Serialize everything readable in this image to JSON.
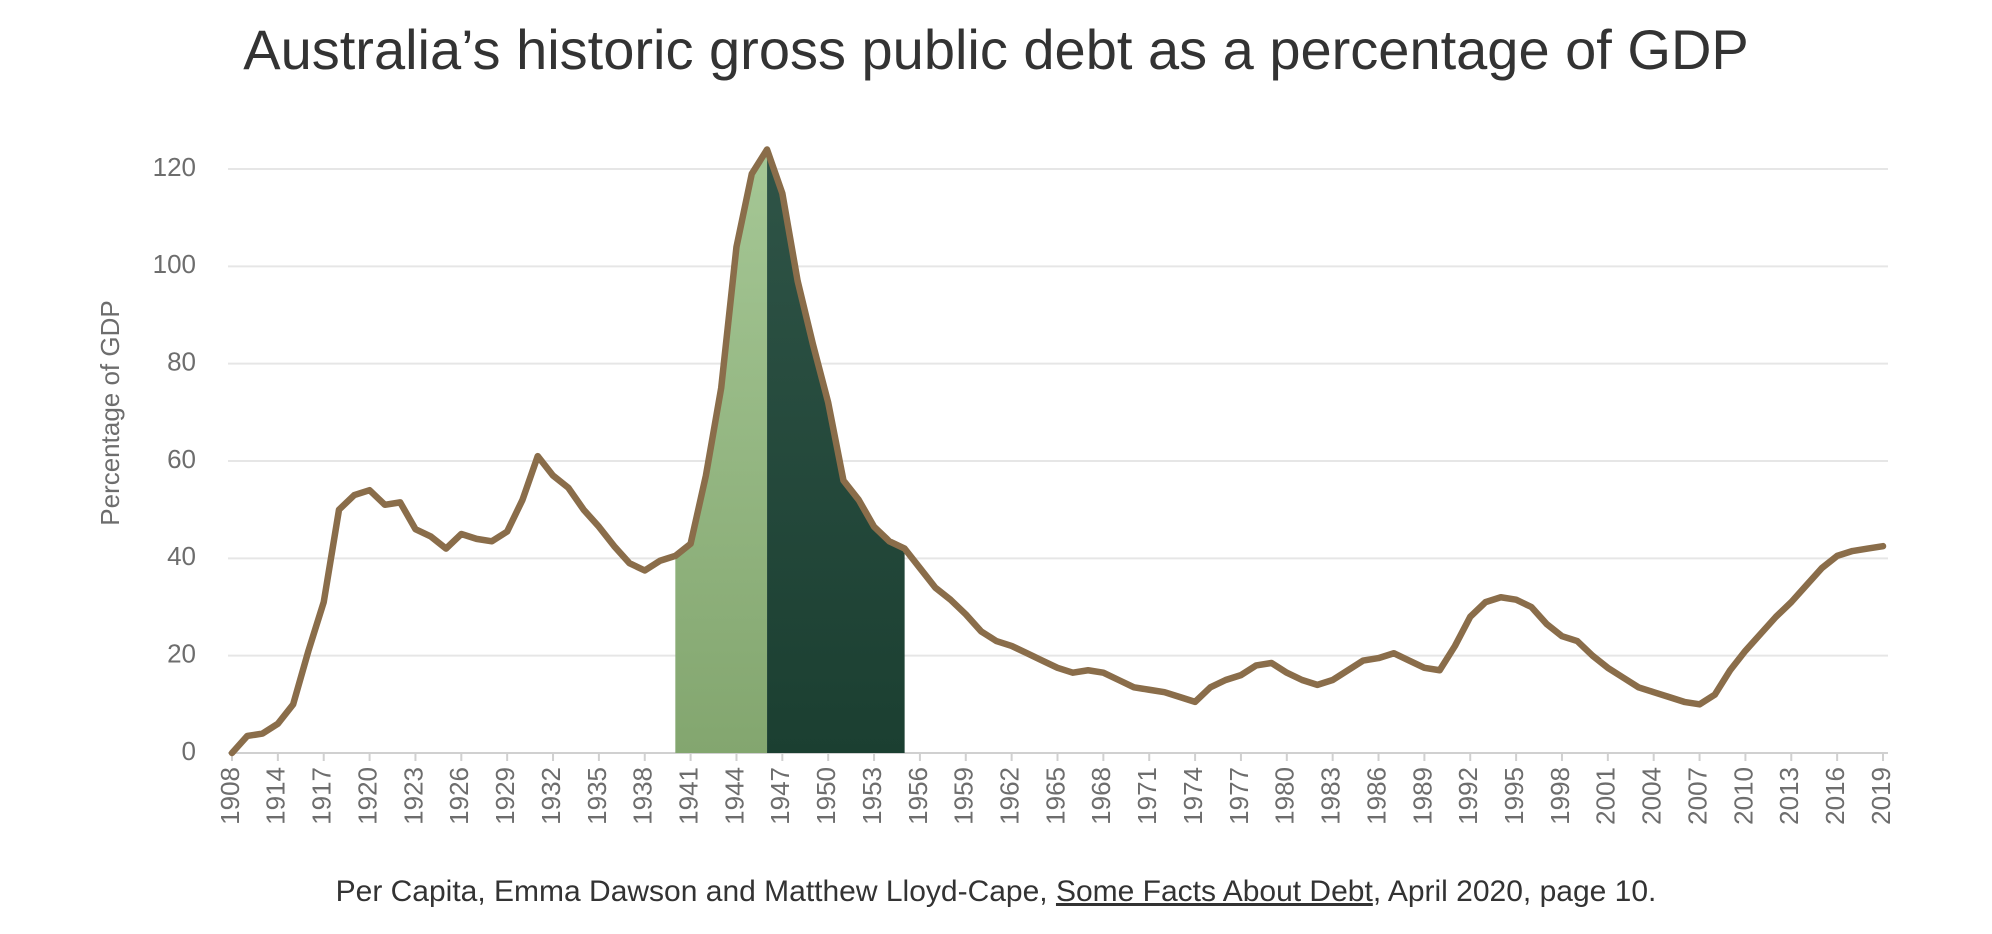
{
  "chart_data": {
    "type": "line",
    "title": "Australia’s historic gross public debt as a percentage of GDP",
    "y_label": "Percentage of GDP",
    "categories": [
      "1908",
      null,
      null,
      "1914",
      null,
      null,
      "1917",
      null,
      null,
      "1920",
      null,
      null,
      "1923",
      null,
      null,
      "1926",
      null,
      null,
      "1929",
      null,
      null,
      "1932",
      null,
      null,
      "1935",
      null,
      null,
      "1938",
      null,
      null,
      "1941",
      null,
      null,
      "1944",
      null,
      null,
      "1947",
      null,
      null,
      "1950",
      null,
      null,
      "1953",
      null,
      null,
      "1956",
      null,
      null,
      "1959",
      null,
      null,
      "1962",
      null,
      null,
      "1965",
      null,
      null,
      "1968",
      null,
      null,
      "1971",
      null,
      null,
      "1974",
      null,
      null,
      "1977",
      null,
      null,
      "1980",
      null,
      null,
      "1983",
      null,
      null,
      "1986",
      null,
      null,
      "1989",
      null,
      null,
      "1992",
      null,
      null,
      "1995",
      null,
      null,
      "1998",
      null,
      null,
      "2001",
      null,
      null,
      "2004",
      null,
      null,
      "2007",
      null,
      null,
      "2010",
      null,
      null,
      "2013",
      null,
      null,
      "2016",
      null,
      null,
      "2019"
    ],
    "series": [
      {
        "name": "Gross public debt",
        "color": "#8a6d4a",
        "values": [
          0,
          3.5,
          4,
          6,
          10,
          21,
          31,
          50,
          53,
          54,
          51,
          51.5,
          46,
          44.5,
          42,
          45,
          44,
          43.5,
          45.5,
          52,
          61,
          57,
          54.5,
          50,
          46.5,
          42.5,
          39,
          37.5,
          39.5,
          40.5,
          43,
          57,
          75,
          104,
          119,
          124,
          115,
          97,
          84,
          72,
          56,
          52,
          46.5,
          43.5,
          42,
          38,
          34,
          31.5,
          28.5,
          25,
          23,
          22,
          20.5,
          19,
          17.5,
          16.5,
          17,
          16.5,
          15,
          13.5,
          13,
          12.5,
          11.5,
          10.5,
          13.5,
          15,
          16,
          18,
          18.5,
          16.5,
          15,
          14,
          15,
          17,
          19,
          19.5,
          20.5,
          19,
          17.5,
          17,
          22,
          28,
          31,
          32,
          31.5,
          30,
          26.5,
          24,
          23,
          20,
          17.5,
          15.5,
          13.5,
          12.5,
          11.5,
          10.5,
          10,
          12,
          17,
          21,
          24.5,
          28,
          31,
          34.5,
          38,
          40.5,
          41.5,
          42,
          42.5
        ]
      }
    ],
    "shaded_ranges": [
      {
        "from": 29,
        "to": 35,
        "color_top": "#a5c795",
        "color_bottom": "#83a66f"
      },
      {
        "from": 35,
        "to": 44,
        "color_top": "#2f5447",
        "color_bottom": "#1b3f31"
      }
    ],
    "ylim": [
      0,
      120
    ],
    "yticks": [
      0,
      20,
      40,
      60,
      80,
      100,
      120
    ],
    "grid": true,
    "source": {
      "before": "Per Capita, Emma Dawson and Matthew Lloyd-Cape, ",
      "link": "Some Facts About Debt",
      "after": ", April 2020, page 10."
    }
  }
}
